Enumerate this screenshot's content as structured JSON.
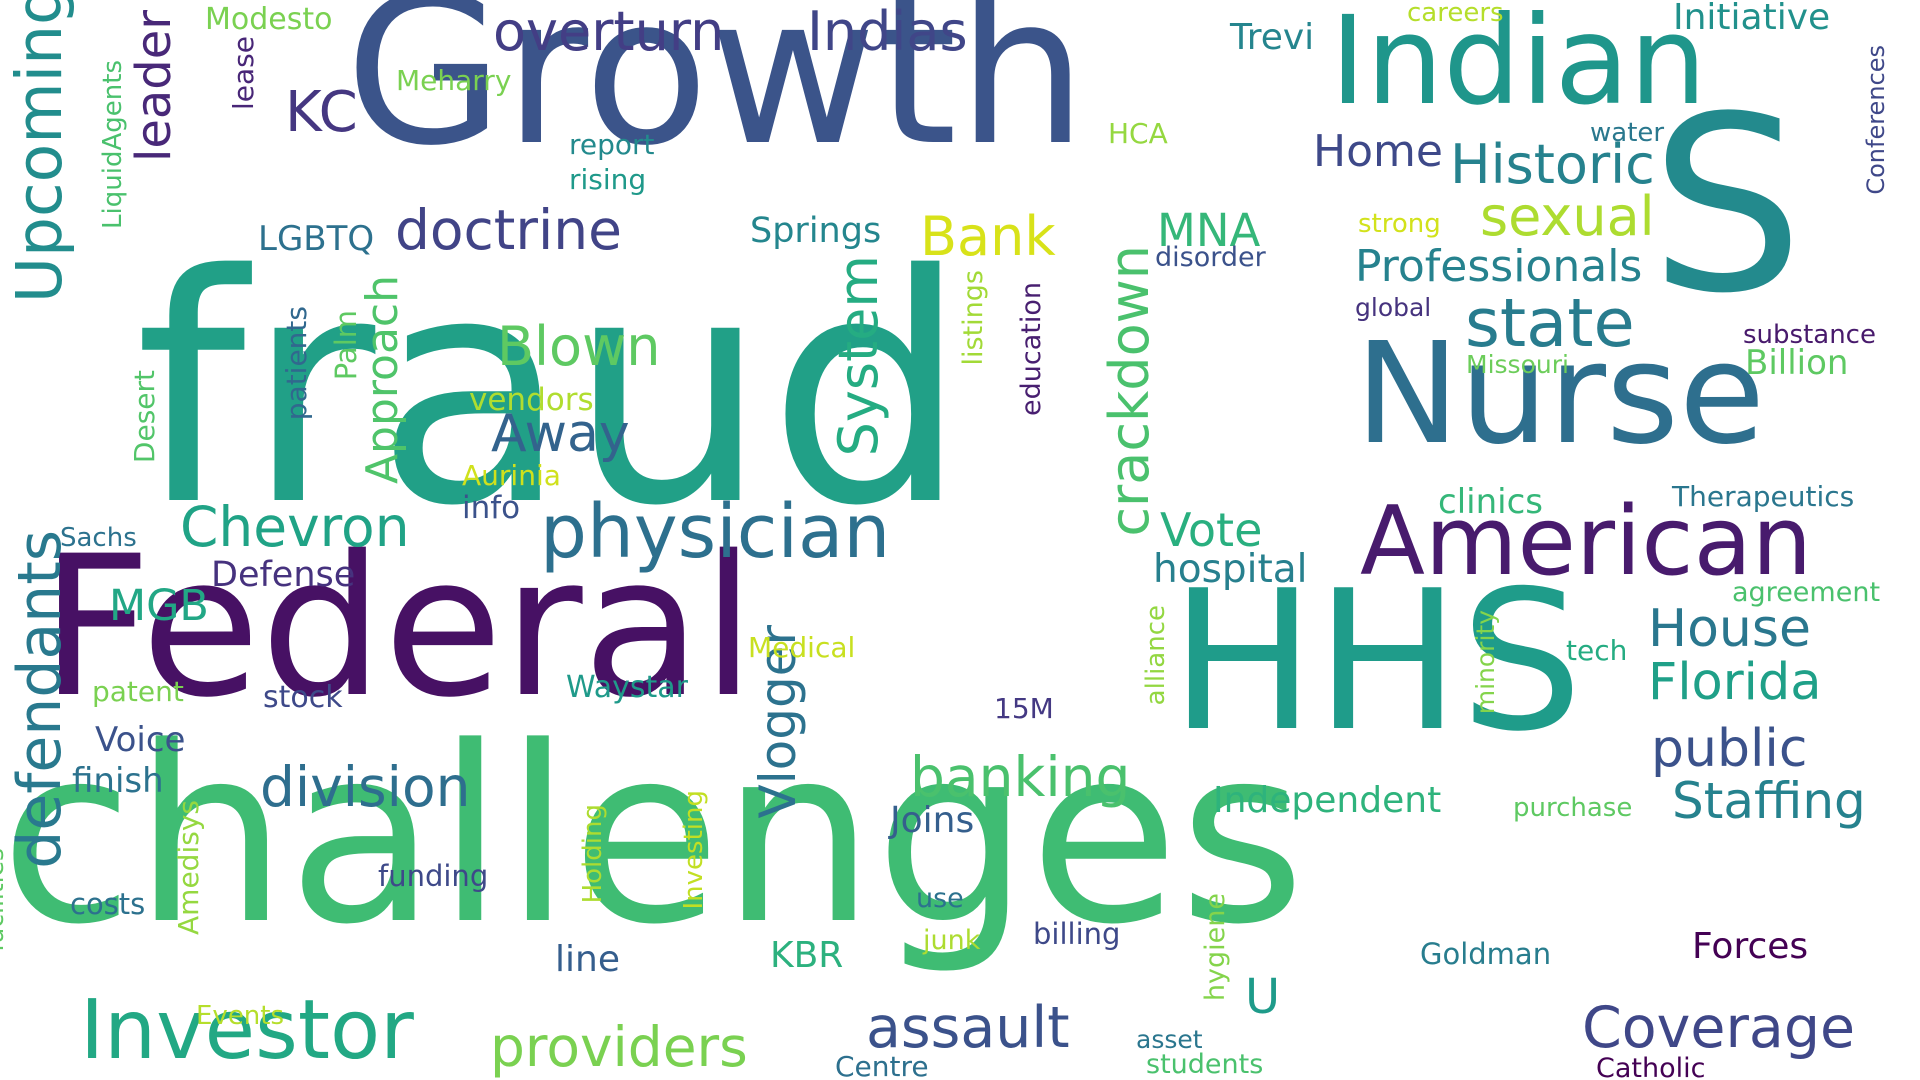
{
  "words": [
    {
      "text": "fraud",
      "color": "#21a087",
      "rotated": false
    },
    {
      "text": "challenges",
      "color": "#3fbc73",
      "rotated": false
    },
    {
      "text": "Growth",
      "color": "#3b548a",
      "rotated": false
    },
    {
      "text": "Federal",
      "color": "#471164",
      "rotated": false
    },
    {
      "text": "HHS",
      "color": "#1f9c8a",
      "rotated": false
    },
    {
      "text": "S",
      "color": "#238a8d",
      "rotated": false
    },
    {
      "text": "Indian",
      "color": "#1f968b",
      "rotated": false
    },
    {
      "text": "Nurse",
      "color": "#2e6f8e",
      "rotated": false
    },
    {
      "text": "American",
      "color": "#481b6d",
      "rotated": false
    },
    {
      "text": "Investor",
      "color": "#22a884",
      "rotated": false
    },
    {
      "text": "physician",
      "color": "#2d708e",
      "rotated": false
    },
    {
      "text": "Upcoming",
      "color": "#228d8d",
      "rotated": true
    },
    {
      "text": "defendants",
      "color": "#29798e",
      "rotated": true
    },
    {
      "text": "Historic",
      "color": "#26828e",
      "rotated": false
    },
    {
      "text": "sexual",
      "color": "#addc30",
      "rotated": false
    },
    {
      "text": "state",
      "color": "#287c8e",
      "rotated": false
    },
    {
      "text": "Professionals",
      "color": "#26828e",
      "rotated": false
    },
    {
      "text": "overturn",
      "color": "#433e85",
      "rotated": false
    },
    {
      "text": "Indias",
      "color": "#404688",
      "rotated": false
    },
    {
      "text": "doctrine",
      "color": "#414487",
      "rotated": false
    },
    {
      "text": "leader",
      "color": "#482878",
      "rotated": true
    },
    {
      "text": "KC",
      "color": "#453781",
      "rotated": false
    },
    {
      "text": "Bank",
      "color": "#d8e219",
      "rotated": false
    },
    {
      "text": "Blown",
      "color": "#5ec962",
      "rotated": false
    },
    {
      "text": "Away",
      "color": "#33638d",
      "rotated": false
    },
    {
      "text": "System",
      "color": "#25ac82",
      "rotated": true
    },
    {
      "text": "crackdown",
      "color": "#4ac16d",
      "rotated": true
    },
    {
      "text": "Approach",
      "color": "#4fc46a",
      "rotated": true
    },
    {
      "text": "Chevron",
      "color": "#20a386",
      "rotated": false
    },
    {
      "text": "banking",
      "color": "#4ac16d",
      "rotated": false
    },
    {
      "text": "division",
      "color": "#2e6e8e",
      "rotated": false
    },
    {
      "text": "Vlogger",
      "color": "#2c728e",
      "rotated": true
    },
    {
      "text": "providers",
      "color": "#7ad151",
      "rotated": false
    },
    {
      "text": "assault",
      "color": "#3b528b",
      "rotated": false
    },
    {
      "text": "Coverage",
      "color": "#3f4788",
      "rotated": false
    },
    {
      "text": "House",
      "color": "#2a778e",
      "rotated": false
    },
    {
      "text": "Florida",
      "color": "#1fa088",
      "rotated": false
    },
    {
      "text": "public",
      "color": "#3b528b",
      "rotated": false
    },
    {
      "text": "Staffing",
      "color": "#26828e",
      "rotated": false
    },
    {
      "text": "MNA",
      "color": "#35b779",
      "rotated": false
    },
    {
      "text": "Vote",
      "color": "#29af7f",
      "rotated": false
    },
    {
      "text": "hospital",
      "color": "#27808e",
      "rotated": false
    },
    {
      "text": "U",
      "color": "#1e9b8a",
      "rotated": false
    },
    {
      "text": "Home",
      "color": "#3e4989",
      "rotated": false
    },
    {
      "text": "MGB",
      "color": "#22a785",
      "rotated": false
    },
    {
      "text": "Defense",
      "color": "#46327e",
      "rotated": false
    },
    {
      "text": "Voice",
      "color": "#3b528b",
      "rotated": false
    },
    {
      "text": "finish",
      "color": "#2c728e",
      "rotated": false
    },
    {
      "text": "Independent",
      "color": "#2eb37c",
      "rotated": false
    },
    {
      "text": "Joins",
      "color": "#355f8d",
      "rotated": false
    },
    {
      "text": "KBR",
      "color": "#2cb17e",
      "rotated": false
    },
    {
      "text": "line",
      "color": "#355e8d",
      "rotated": false
    },
    {
      "text": "Forces",
      "color": "#440154",
      "rotated": false
    },
    {
      "text": "Springs",
      "color": "#24868e",
      "rotated": false
    },
    {
      "text": "LGBTQ",
      "color": "#2d718e",
      "rotated": false
    },
    {
      "text": "clinics",
      "color": "#35b779",
      "rotated": false
    },
    {
      "text": "Billion",
      "color": "#5ec962",
      "rotated": false
    },
    {
      "text": "Initiative",
      "color": "#21918c",
      "rotated": false
    },
    {
      "text": "Trevi",
      "color": "#25858e",
      "rotated": false
    },
    {
      "text": "Modesto",
      "color": "#7ad151",
      "rotated": false
    },
    {
      "text": "careers",
      "color": "#b5de2b",
      "rotated": false
    },
    {
      "text": "Meharry",
      "color": "#7ad151",
      "rotated": false
    },
    {
      "text": "lease",
      "color": "#482677",
      "rotated": true
    },
    {
      "text": "report",
      "color": "#238a8d",
      "rotated": false
    },
    {
      "text": "rising",
      "color": "#1f998a",
      "rotated": false
    },
    {
      "text": "HCA",
      "color": "#95d840",
      "rotated": false
    },
    {
      "text": "water",
      "color": "#2a788e",
      "rotated": false
    },
    {
      "text": "strong",
      "color": "#d2e21b",
      "rotated": false
    },
    {
      "text": "disorder",
      "color": "#3b528b",
      "rotated": false
    },
    {
      "text": "global",
      "color": "#46337e",
      "rotated": false
    },
    {
      "text": "substance",
      "color": "#481a6c",
      "rotated": false
    },
    {
      "text": "Missouri",
      "color": "#6ccd5a",
      "rotated": false
    },
    {
      "text": "Therapeutics",
      "color": "#2a768e",
      "rotated": false
    },
    {
      "text": "Conferences",
      "color": "#3f4889",
      "rotated": true
    },
    {
      "text": "LiquidAgents",
      "color": "#4ac16d",
      "rotated": true
    },
    {
      "text": "Desert",
      "color": "#52c569",
      "rotated": true
    },
    {
      "text": "Palm",
      "color": "#5ec962",
      "rotated": true
    },
    {
      "text": "patients",
      "color": "#31688e",
      "rotated": true
    },
    {
      "text": "vendors",
      "color": "#b0dd2f",
      "rotated": false
    },
    {
      "text": "Aurinia",
      "color": "#d0e11c",
      "rotated": false
    },
    {
      "text": "info",
      "color": "#3b528b",
      "rotated": false
    },
    {
      "text": "listings",
      "color": "#a2da37",
      "rotated": true
    },
    {
      "text": "education",
      "color": "#481f70",
      "rotated": true
    },
    {
      "text": "agreement",
      "color": "#4ac16d",
      "rotated": false
    },
    {
      "text": "tech",
      "color": "#25ac82",
      "rotated": false
    },
    {
      "text": "purchase",
      "color": "#5ec962",
      "rotated": false
    },
    {
      "text": "minority",
      "color": "#84d44b",
      "rotated": true
    },
    {
      "text": "alliance",
      "color": "#93d741",
      "rotated": true
    },
    {
      "text": "Sachs",
      "color": "#2c728e",
      "rotated": false
    },
    {
      "text": "patent",
      "color": "#7ad151",
      "rotated": false
    },
    {
      "text": "stock",
      "color": "#3e4989",
      "rotated": false
    },
    {
      "text": "Waystar",
      "color": "#1f9a8a",
      "rotated": false
    },
    {
      "text": "Medical",
      "color": "#c8e020",
      "rotated": false
    },
    {
      "text": "15M",
      "color": "#443983",
      "rotated": false
    },
    {
      "text": "Amedisys",
      "color": "#95d840",
      "rotated": true
    },
    {
      "text": "Holding",
      "color": "#addc30",
      "rotated": true
    },
    {
      "text": "Investing",
      "color": "#c2df23",
      "rotated": true
    },
    {
      "text": "funding",
      "color": "#3e4989",
      "rotated": false
    },
    {
      "text": "costs",
      "color": "#2c718e",
      "rotated": false
    },
    {
      "text": "use",
      "color": "#2c728e",
      "rotated": false
    },
    {
      "text": "junk",
      "color": "#addc30",
      "rotated": false
    },
    {
      "text": "billing",
      "color": "#3e4989",
      "rotated": false
    },
    {
      "text": "Goldman",
      "color": "#287d8e",
      "rotated": false
    },
    {
      "text": "hygiene",
      "color": "#84d44b",
      "rotated": true
    },
    {
      "text": "facilities",
      "color": "#5ec962",
      "rotated": true
    },
    {
      "text": "Events",
      "color": "#b5de2b",
      "rotated": false
    },
    {
      "text": "asset",
      "color": "#2a768e",
      "rotated": false
    },
    {
      "text": "Centre",
      "color": "#2d708e",
      "rotated": false
    },
    {
      "text": "students",
      "color": "#4ac16d",
      "rotated": false
    },
    {
      "text": "Catholic",
      "color": "#440154",
      "rotated": false
    }
  ]
}
